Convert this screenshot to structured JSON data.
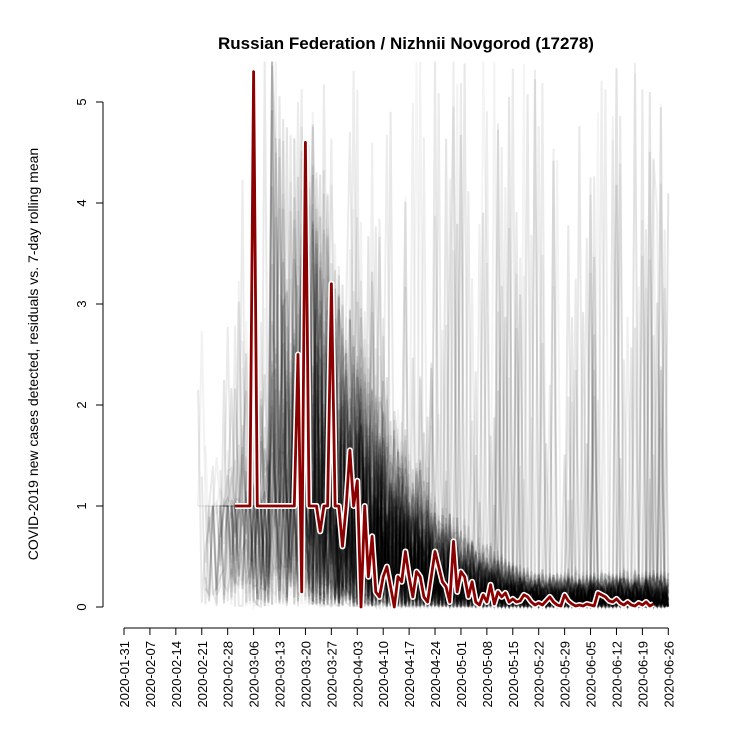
{
  "chart_data": {
    "type": "line",
    "title": "Russian Federation / Nizhnii Novgorod (17278)",
    "ylabel": "COVID-2019 new cases detected, residuals vs. 7-day rolling mean",
    "xlabel": "",
    "ylim": [
      0,
      5
    ],
    "yticks": [
      "0",
      "1",
      "2",
      "3",
      "4",
      "5"
    ],
    "x_range": [
      "2020-01-31",
      "2020-06-27"
    ],
    "xticks": [
      "2020-01-31",
      "2020-02-07",
      "2020-02-14",
      "2020-02-21",
      "2020-02-28",
      "2020-03-06",
      "2020-03-13",
      "2020-03-20",
      "2020-03-27",
      "2020-04-03",
      "2020-04-10",
      "2020-04-17",
      "2020-04-24",
      "2020-05-01",
      "2020-05-08",
      "2020-05-15",
      "2020-05-22",
      "2020-05-29",
      "2020-06-05",
      "2020-06-12",
      "2020-06-19",
      "2020-06-26"
    ],
    "grid": false,
    "legend": "none",
    "colors": {
      "highlight": "#8b0000",
      "background_series": "#000000"
    },
    "series": [
      {
        "highlight": true,
        "points": [
          [
            "2020-03-01",
            1
          ],
          [
            "2020-03-05",
            1
          ],
          [
            "2020-03-06",
            5.3
          ],
          [
            "2020-03-07",
            1
          ],
          [
            "2020-03-09",
            1
          ],
          [
            "2020-03-15",
            1
          ],
          [
            "2020-03-17",
            1
          ],
          [
            "2020-03-18",
            2.5
          ],
          [
            "2020-03-19",
            0.15
          ],
          [
            "2020-03-20",
            4.6
          ],
          [
            "2020-03-21",
            1
          ],
          [
            "2020-03-23",
            1
          ],
          [
            "2020-03-24",
            0.75
          ],
          [
            "2020-03-25",
            1
          ],
          [
            "2020-03-26",
            1
          ],
          [
            "2020-03-27",
            3.2
          ],
          [
            "2020-03-28",
            1
          ],
          [
            "2020-03-29",
            1
          ],
          [
            "2020-03-30",
            0.6
          ],
          [
            "2020-03-31",
            1
          ],
          [
            "2020-04-01",
            1.55
          ],
          [
            "2020-04-02",
            1
          ],
          [
            "2020-04-03",
            1.25
          ],
          [
            "2020-04-04",
            0
          ],
          [
            "2020-04-05",
            1
          ],
          [
            "2020-04-06",
            0.3
          ],
          [
            "2020-04-07",
            0.7
          ],
          [
            "2020-04-08",
            0.15
          ],
          [
            "2020-04-09",
            0.1
          ],
          [
            "2020-04-10",
            0.3
          ],
          [
            "2020-04-11",
            0.4
          ],
          [
            "2020-04-12",
            0.2
          ],
          [
            "2020-04-13",
            0
          ],
          [
            "2020-04-14",
            0.3
          ],
          [
            "2020-04-15",
            0.25
          ],
          [
            "2020-04-16",
            0.55
          ],
          [
            "2020-04-17",
            0.3
          ],
          [
            "2020-04-18",
            0.1
          ],
          [
            "2020-04-19",
            0.35
          ],
          [
            "2020-04-20",
            0.3
          ],
          [
            "2020-04-21",
            0.1
          ],
          [
            "2020-04-22",
            0.05
          ],
          [
            "2020-04-23",
            0.3
          ],
          [
            "2020-04-24",
            0.55
          ],
          [
            "2020-04-25",
            0.4
          ],
          [
            "2020-04-26",
            0.25
          ],
          [
            "2020-04-27",
            0.2
          ],
          [
            "2020-04-28",
            0.05
          ],
          [
            "2020-04-29",
            0.65
          ],
          [
            "2020-04-30",
            0.15
          ],
          [
            "2020-05-01",
            0.35
          ],
          [
            "2020-05-02",
            0.3
          ],
          [
            "2020-05-03",
            0.1
          ],
          [
            "2020-05-04",
            0.25
          ],
          [
            "2020-05-05",
            0.05
          ],
          [
            "2020-05-06",
            0.02
          ],
          [
            "2020-05-07",
            0.12
          ],
          [
            "2020-05-08",
            0.05
          ],
          [
            "2020-05-09",
            0.22
          ],
          [
            "2020-05-10",
            0.03
          ],
          [
            "2020-05-11",
            0.15
          ],
          [
            "2020-05-12",
            0.1
          ],
          [
            "2020-05-13",
            0.14
          ],
          [
            "2020-05-14",
            0.05
          ],
          [
            "2020-05-15",
            0.08
          ],
          [
            "2020-05-16",
            0.05
          ],
          [
            "2020-05-17",
            0.06
          ],
          [
            "2020-05-18",
            0.12
          ],
          [
            "2020-05-19",
            0.1
          ],
          [
            "2020-05-20",
            0.05
          ],
          [
            "2020-05-21",
            0.02
          ],
          [
            "2020-05-22",
            0.04
          ],
          [
            "2020-05-23",
            0.02
          ],
          [
            "2020-05-24",
            0.06
          ],
          [
            "2020-05-25",
            0.1
          ],
          [
            "2020-05-26",
            0.05
          ],
          [
            "2020-05-27",
            0.02
          ],
          [
            "2020-05-28",
            0.01
          ],
          [
            "2020-05-29",
            0.12
          ],
          [
            "2020-05-30",
            0.06
          ],
          [
            "2020-05-31",
            0.03
          ],
          [
            "2020-06-01",
            0.01
          ],
          [
            "2020-06-02",
            0.02
          ],
          [
            "2020-06-03",
            0.01
          ],
          [
            "2020-06-04",
            0.03
          ],
          [
            "2020-06-05",
            0.02
          ],
          [
            "2020-06-06",
            0.01
          ],
          [
            "2020-06-07",
            0.14
          ],
          [
            "2020-06-08",
            0.12
          ],
          [
            "2020-06-09",
            0.1
          ],
          [
            "2020-06-10",
            0.06
          ],
          [
            "2020-06-11",
            0.05
          ],
          [
            "2020-06-12",
            0.08
          ],
          [
            "2020-06-13",
            0.04
          ],
          [
            "2020-06-14",
            0.02
          ],
          [
            "2020-06-15",
            0.05
          ],
          [
            "2020-06-16",
            0.02
          ],
          [
            "2020-06-17",
            0.01
          ],
          [
            "2020-06-18",
            0.04
          ],
          [
            "2020-06-19",
            0.02
          ],
          [
            "2020-06-20",
            0.05
          ],
          [
            "2020-06-21",
            0.01
          ],
          [
            "2020-06-22",
            0.03
          ]
        ]
      }
    ]
  }
}
